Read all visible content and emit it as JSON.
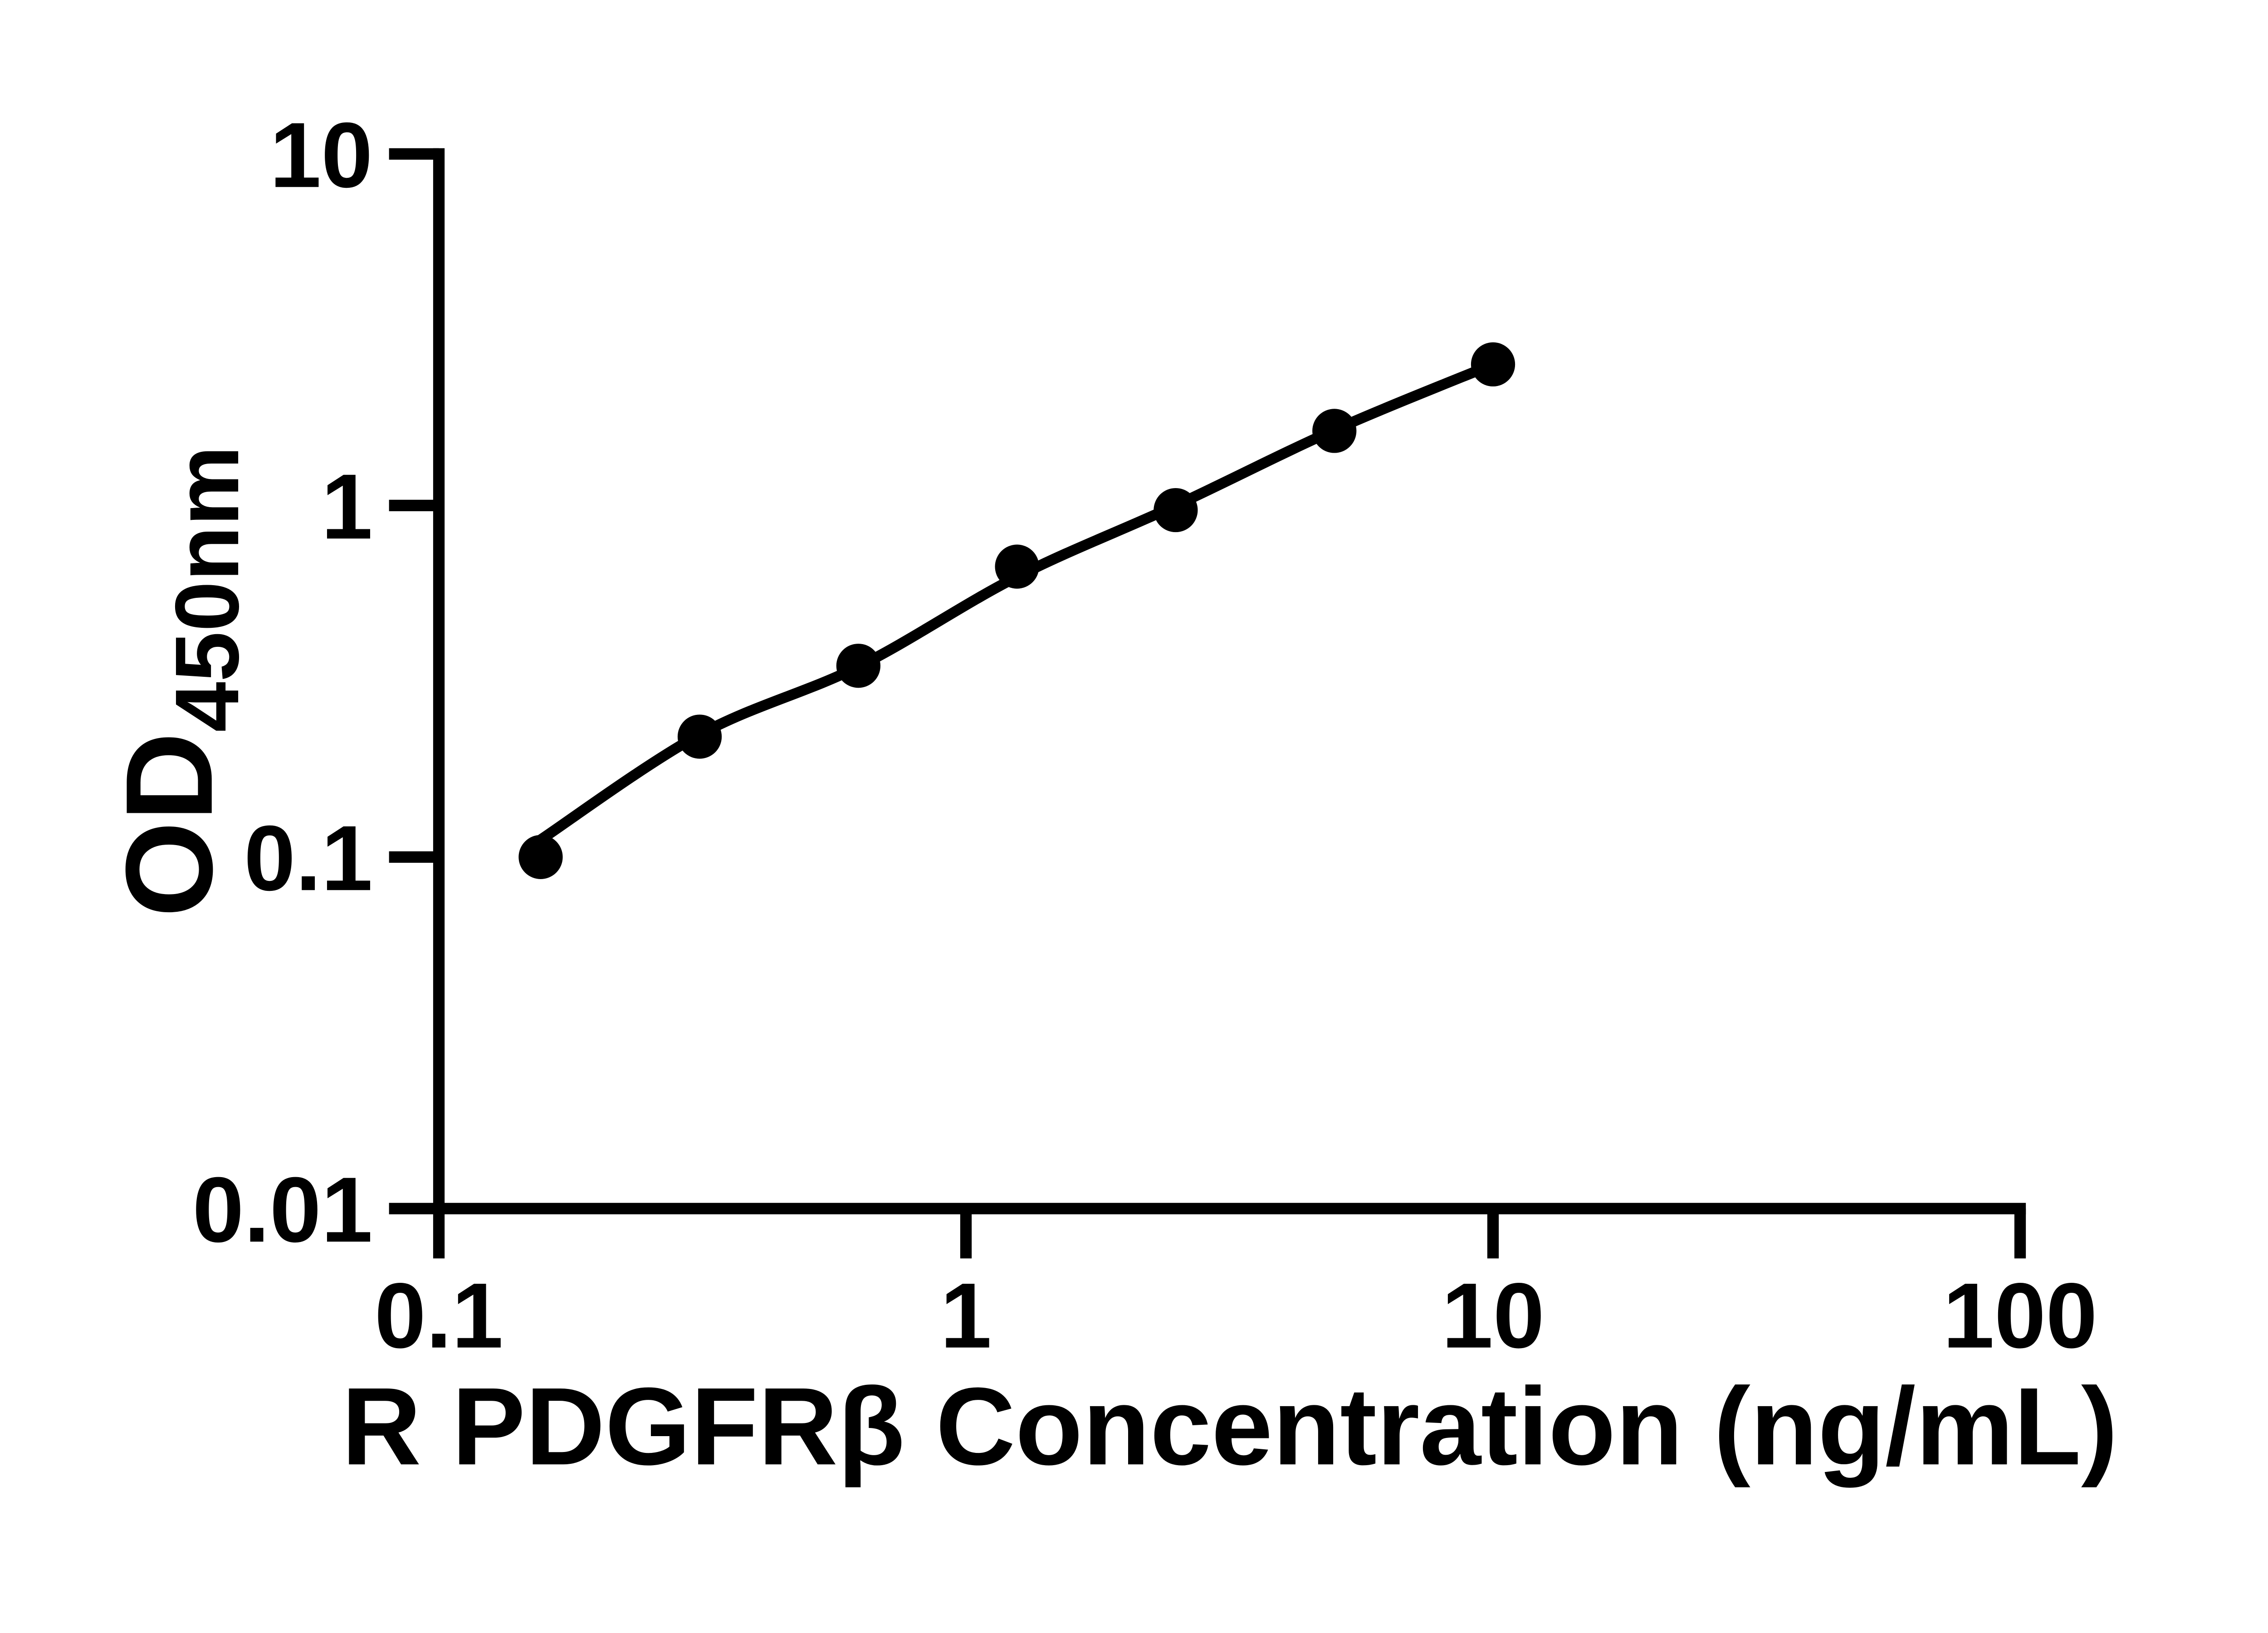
{
  "page": {
    "background_color": "#ffffff",
    "foreground_color": "#000000"
  },
  "chart_data": {
    "type": "scatter",
    "title": "",
    "xlabel": "R PDGFRβ Concentration (ng/mL)",
    "ylabel_main": "OD",
    "ylabel_sub": "450nm",
    "x_scale": "log",
    "y_scale": "log",
    "xlim": [
      0.1,
      100
    ],
    "ylim": [
      0.01,
      10
    ],
    "grid": false,
    "legend": "none",
    "x_ticks": {
      "values": [
        0.1,
        1,
        10,
        100
      ],
      "labels": [
        "0.1",
        "1",
        "10",
        "100"
      ]
    },
    "y_ticks": {
      "values": [
        10,
        1,
        0.1,
        0.01
      ],
      "labels": [
        "10",
        "1",
        "0.1",
        "0.01"
      ]
    },
    "series": [
      {
        "name": "standard curve points",
        "marker": "filled-circle",
        "color": "#000000",
        "points": [
          {
            "x": 0.156,
            "y": 0.1
          },
          {
            "x": 0.3125,
            "y": 0.22
          },
          {
            "x": 0.625,
            "y": 0.35
          },
          {
            "x": 1.25,
            "y": 0.67
          },
          {
            "x": 2.5,
            "y": 0.97
          },
          {
            "x": 5,
            "y": 1.63
          },
          {
            "x": 10,
            "y": 2.52
          }
        ]
      }
    ],
    "fit_curve": {
      "name": "fitted standard curve line",
      "color": "#000000",
      "x": [
        0.156,
        0.3125,
        0.625,
        1.25,
        2.5,
        5,
        10
      ],
      "y": [
        0.112,
        0.223,
        0.348,
        0.627,
        1.0,
        1.64,
        2.52
      ]
    }
  }
}
